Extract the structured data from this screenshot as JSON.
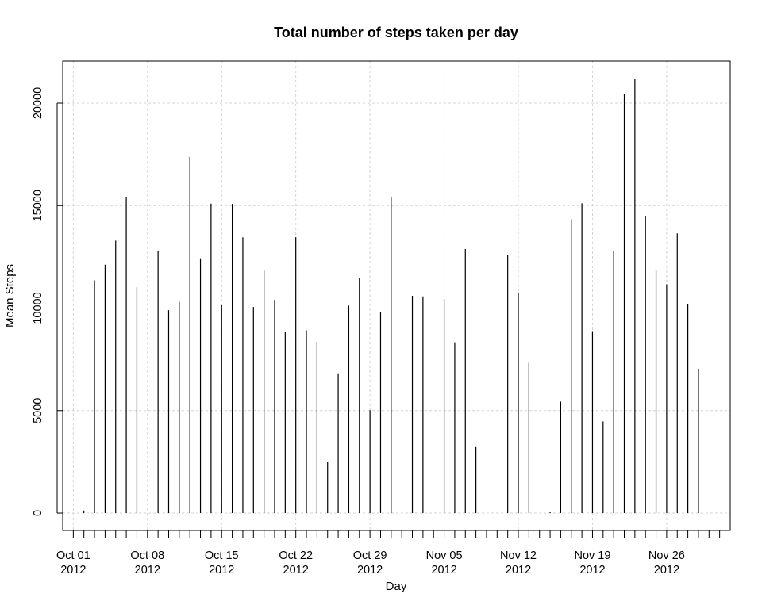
{
  "chart_data": {
    "type": "bar",
    "style": "histogram-spikes",
    "title": "Total number of steps taken per day",
    "xlabel": "Day",
    "ylabel": "Mean Steps",
    "x": [
      "2012-10-01",
      "2012-10-02",
      "2012-10-03",
      "2012-10-04",
      "2012-10-05",
      "2012-10-06",
      "2012-10-07",
      "2012-10-08",
      "2012-10-09",
      "2012-10-10",
      "2012-10-11",
      "2012-10-12",
      "2012-10-13",
      "2012-10-14",
      "2012-10-15",
      "2012-10-16",
      "2012-10-17",
      "2012-10-18",
      "2012-10-19",
      "2012-10-20",
      "2012-10-21",
      "2012-10-22",
      "2012-10-23",
      "2012-10-24",
      "2012-10-25",
      "2012-10-26",
      "2012-10-27",
      "2012-10-28",
      "2012-10-29",
      "2012-10-30",
      "2012-10-31",
      "2012-11-01",
      "2012-11-02",
      "2012-11-03",
      "2012-11-04",
      "2012-11-05",
      "2012-11-06",
      "2012-11-07",
      "2012-11-08",
      "2012-11-09",
      "2012-11-10",
      "2012-11-11",
      "2012-11-12",
      "2012-11-13",
      "2012-11-14",
      "2012-11-15",
      "2012-11-16",
      "2012-11-17",
      "2012-11-18",
      "2012-11-19",
      "2012-11-20",
      "2012-11-21",
      "2012-11-22",
      "2012-11-23",
      "2012-11-24",
      "2012-11-25",
      "2012-11-26",
      "2012-11-27",
      "2012-11-28",
      "2012-11-29",
      "2012-11-30"
    ],
    "values": [
      0,
      126,
      11352,
      12116,
      13294,
      15420,
      11015,
      0,
      12811,
      9900,
      10304,
      17382,
      12426,
      15098,
      10139,
      15084,
      13452,
      10056,
      11829,
      10395,
      8821,
      13460,
      8918,
      8355,
      2492,
      6778,
      10119,
      11458,
      5018,
      9819,
      15414,
      0,
      10600,
      10571,
      0,
      10439,
      8334,
      12883,
      3219,
      0,
      0,
      12608,
      10765,
      7336,
      0,
      41,
      5441,
      14339,
      15110,
      8841,
      4472,
      12787,
      20427,
      21194,
      14478,
      11834,
      11162,
      13646,
      10183,
      7047,
      0
    ],
    "x_tick_labels": [
      {
        "date": "2012-10-01",
        "line1": "Oct 01",
        "line2": "2012"
      },
      {
        "date": "2012-10-08",
        "line1": "Oct 08",
        "line2": "2012"
      },
      {
        "date": "2012-10-15",
        "line1": "Oct 15",
        "line2": "2012"
      },
      {
        "date": "2012-10-22",
        "line1": "Oct 22",
        "line2": "2012"
      },
      {
        "date": "2012-10-29",
        "line1": "Oct 29",
        "line2": "2012"
      },
      {
        "date": "2012-11-05",
        "line1": "Nov 05",
        "line2": "2012"
      },
      {
        "date": "2012-11-12",
        "line1": "Nov 12",
        "line2": "2012"
      },
      {
        "date": "2012-11-19",
        "line1": "Nov 19",
        "line2": "2012"
      },
      {
        "date": "2012-11-26",
        "line1": "Nov 26",
        "line2": "2012"
      }
    ],
    "y_ticks": [
      0,
      5000,
      10000,
      15000,
      20000
    ],
    "y_tick_labels": [
      "0",
      "5000",
      "10000",
      "15000",
      "20000"
    ],
    "xlim": [
      "2012-09-30",
      "2012-12-02"
    ],
    "ylim": [
      -850,
      22050
    ],
    "grid": true,
    "colors": {
      "bars": "#000000",
      "grid": "#d3d3d3",
      "frame": "#000000"
    }
  }
}
